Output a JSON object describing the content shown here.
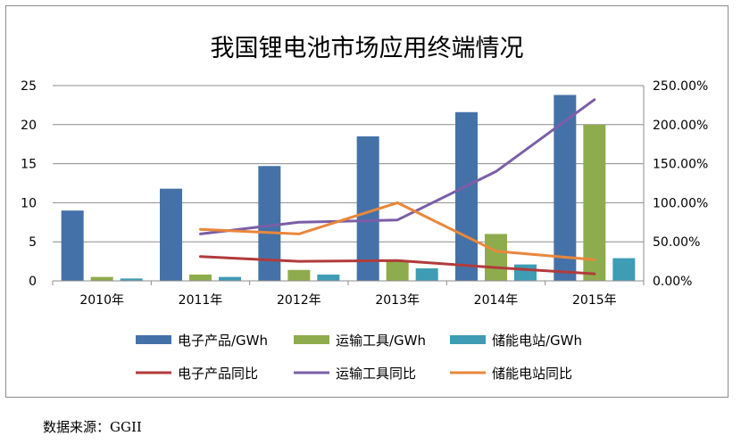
{
  "chart_data": {
    "type": "bar",
    "title": "我国锂电池市场应用终端情况",
    "categories": [
      "2010年",
      "2011年",
      "2012年",
      "2013年",
      "2014年",
      "2015年"
    ],
    "y_left": {
      "lim": [
        0,
        25
      ],
      "ticks": [
        "0",
        "5",
        "10",
        "15",
        "20",
        "25"
      ]
    },
    "y_right": {
      "lim": [
        0,
        2.5
      ],
      "ticks": [
        "0.00%",
        "50.00%",
        "100.00%",
        "150.00%",
        "200.00%",
        "250.00%"
      ]
    },
    "grid": true,
    "legend_position": "bottom",
    "series": [
      {
        "name": "电子产品/GWh",
        "kind": "bar",
        "axis": "left",
        "color": "#4472a8",
        "values": [
          9.0,
          11.8,
          14.7,
          18.5,
          21.6,
          23.8
        ]
      },
      {
        "name": "运输工具/GWh",
        "kind": "bar",
        "axis": "left",
        "color": "#8eac4d",
        "values": [
          0.5,
          0.8,
          1.4,
          2.5,
          6.0,
          20.0
        ]
      },
      {
        "name": "储能电站/GWh",
        "kind": "bar",
        "axis": "left",
        "color": "#3e9cb4",
        "values": [
          0.3,
          0.5,
          0.8,
          1.6,
          2.1,
          2.9
        ]
      },
      {
        "name": "电子产品同比",
        "kind": "line",
        "axis": "right",
        "color": "#b23b3b",
        "values": [
          null,
          0.31,
          0.25,
          0.26,
          0.17,
          0.09
        ]
      },
      {
        "name": "运输工具同比",
        "kind": "line",
        "axis": "right",
        "color": "#7b5ea7",
        "values": [
          null,
          0.6,
          0.75,
          0.78,
          1.4,
          2.32
        ]
      },
      {
        "name": "储能电站同比",
        "kind": "line",
        "axis": "right",
        "color": "#e9873b",
        "values": [
          null,
          0.66,
          0.6,
          1.0,
          0.38,
          0.27
        ]
      }
    ]
  },
  "source_note": "数据来源：GGII"
}
